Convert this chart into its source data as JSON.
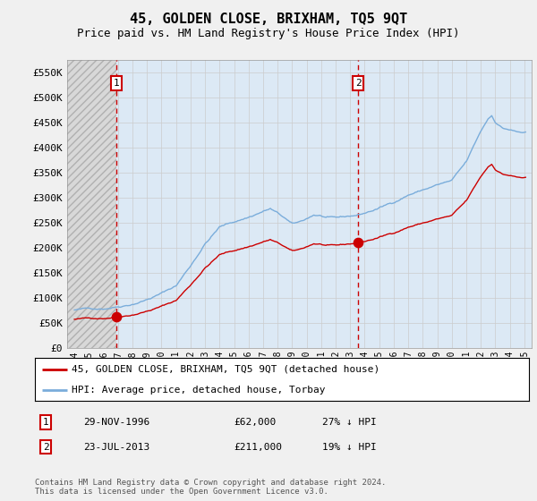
{
  "title": "45, GOLDEN CLOSE, BRIXHAM, TQ5 9QT",
  "subtitle": "Price paid vs. HM Land Registry's House Price Index (HPI)",
  "ylim": [
    0,
    575000
  ],
  "yticks": [
    0,
    50000,
    100000,
    150000,
    200000,
    250000,
    300000,
    350000,
    400000,
    450000,
    500000,
    550000
  ],
  "ytick_labels": [
    "£0",
    "£50K",
    "£100K",
    "£150K",
    "£200K",
    "£250K",
    "£300K",
    "£350K",
    "£400K",
    "£450K",
    "£500K",
    "£550K"
  ],
  "xlim_start": 1993.5,
  "xlim_end": 2025.5,
  "hpi_color": "#7aaddb",
  "price_color": "#cc0000",
  "vline_color": "#cc0000",
  "grid_color": "#cccccc",
  "bg_color": "#f0f0f0",
  "plot_bg": "#dce9f5",
  "purchase1_date": 1996.91,
  "purchase1_price": 62000,
  "purchase2_date": 2013.55,
  "purchase2_price": 211000,
  "legend_label1": "45, GOLDEN CLOSE, BRIXHAM, TQ5 9QT (detached house)",
  "legend_label2": "HPI: Average price, detached house, Torbay",
  "table_row1": [
    "1",
    "29-NOV-1996",
    "£62,000",
    "27% ↓ HPI"
  ],
  "table_row2": [
    "2",
    "23-JUL-2013",
    "£211,000",
    "19% ↓ HPI"
  ],
  "footer": "Contains HM Land Registry data © Crown copyright and database right 2024.\nThis data is licensed under the Open Government Licence v3.0."
}
